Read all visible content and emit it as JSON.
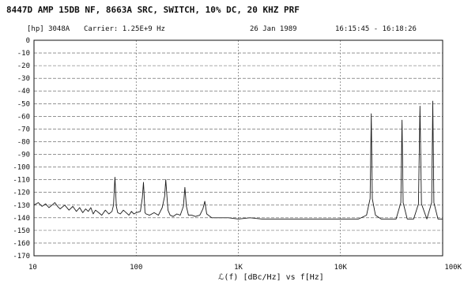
{
  "chart_data": {
    "type": "line",
    "title": "8447D AMP 15DB NF, 8663A SRC, SWITCH, 10% DC, 20 KHZ PRF",
    "subtitle": {
      "instrument": "[hp] 3048A",
      "carrier": "Carrier: 1.25E+9 Hz",
      "date": "26 Jan 1989",
      "time": "16:15:45 - 16:18:26"
    },
    "xlabel": "ℒ(f) [dBc/Hz] vs f[Hz]",
    "ylabel": "",
    "x_scale": "log",
    "xlim": [
      10,
      100000
    ],
    "ylim": [
      -170,
      0
    ],
    "x_tick_labels": [
      {
        "value": 10,
        "label": "10"
      },
      {
        "value": 100,
        "label": "100"
      },
      {
        "value": 1000,
        "label": "1K"
      },
      {
        "value": 10000,
        "label": "10K"
      },
      {
        "value": 100000,
        "label": "100K"
      }
    ],
    "y_ticks": [
      0,
      -10,
      -20,
      -30,
      -40,
      -50,
      -60,
      -70,
      -80,
      -90,
      -100,
      -110,
      -120,
      -130,
      -140,
      -150,
      -160,
      -170
    ],
    "grid": true,
    "colors": {
      "trace": "#1a1a1a",
      "grid": "#555555",
      "axis": "#111111"
    },
    "series": [
      {
        "name": "",
        "x": [
          10,
          11,
          12,
          13,
          14,
          15,
          16,
          17,
          18,
          20,
          22,
          24,
          26,
          28,
          30,
          32,
          34,
          36,
          38,
          40,
          43,
          46,
          50,
          54,
          58,
          60,
          62,
          64,
          66,
          70,
          75,
          80,
          85,
          90,
          95,
          100,
          110,
          115,
          118,
          120,
          122,
          125,
          135,
          150,
          165,
          180,
          190,
          195,
          200,
          205,
          215,
          230,
          250,
          270,
          290,
          300,
          310,
          325,
          350,
          380,
          420,
          450,
          470,
          490,
          550,
          650,
          800,
          1000,
          1300,
          1700,
          2500,
          4000,
          6000,
          10000,
          15000,
          18000,
          19500,
          20000,
          20500,
          22000,
          25000,
          30000,
          35000,
          39000,
          40000,
          41000,
          45000,
          52000,
          58000,
          60000,
          62000,
          70000,
          78000,
          80000,
          82000,
          90000,
          100000
        ],
        "y": [
          -130,
          -128,
          -131,
          -129,
          -132,
          -130,
          -128,
          -131,
          -133,
          -130,
          -134,
          -131,
          -135,
          -132,
          -136,
          -133,
          -135,
          -132,
          -137,
          -134,
          -136,
          -138,
          -134,
          -137,
          -135,
          -130,
          -108,
          -131,
          -136,
          -137,
          -134,
          -136,
          -138,
          -135,
          -137,
          -136,
          -135,
          -124,
          -112,
          -124,
          -136,
          -137,
          -138,
          -136,
          -138,
          -132,
          -123,
          -110,
          -123,
          -134,
          -138,
          -139,
          -137,
          -138,
          -131,
          -116,
          -131,
          -138,
          -138,
          -139,
          -138,
          -133,
          -127,
          -137,
          -140,
          -140,
          -140,
          -141,
          -140,
          -141,
          -141,
          -141,
          -141,
          -141,
          -141,
          -138,
          -125,
          -58,
          -125,
          -138,
          -141,
          -141,
          -141,
          -128,
          -63,
          -128,
          -141,
          -141,
          -129,
          -52,
          -129,
          -141,
          -128,
          -48,
          -128,
          -141,
          -141
        ]
      }
    ]
  }
}
